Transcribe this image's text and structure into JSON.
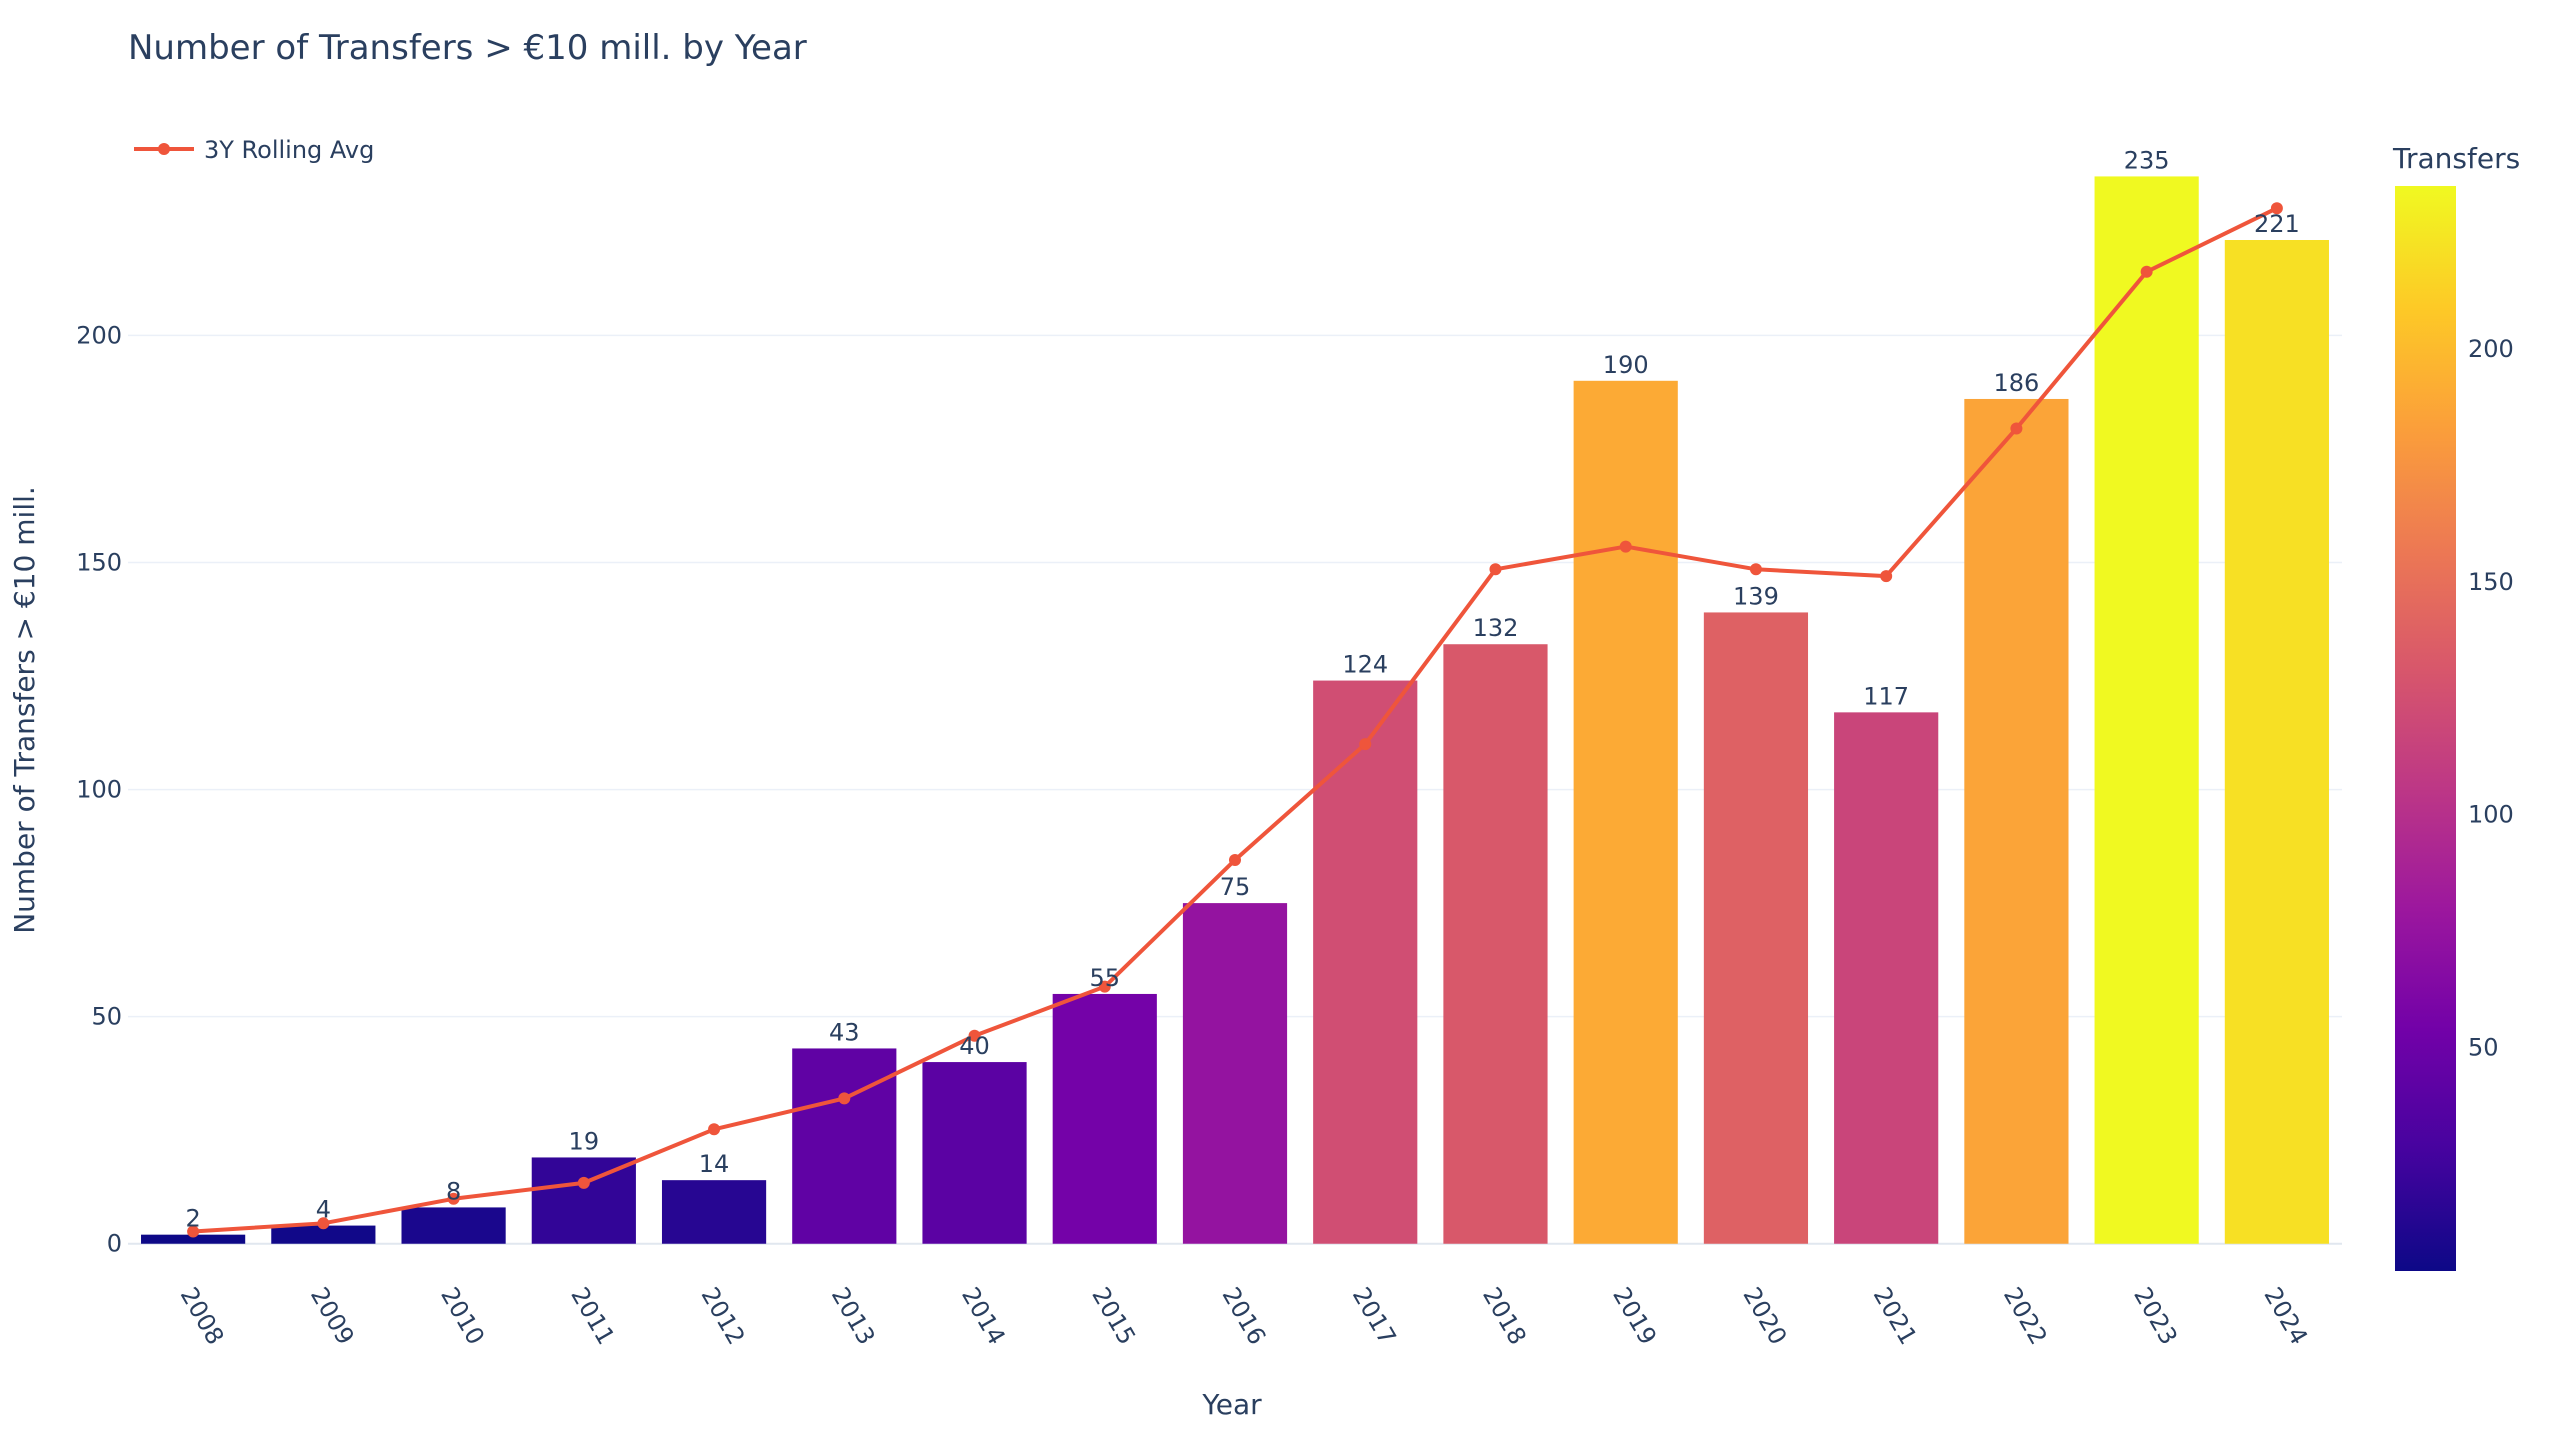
{
  "chart_data": {
    "type": "bar",
    "title": "Number of Transfers > €10 mill. by Year",
    "xlabel": "Year",
    "ylabel": "Number of Transfers > €10 mill.",
    "categories": [
      "2008",
      "2009",
      "2010",
      "2011",
      "2012",
      "2013",
      "2014",
      "2015",
      "2016",
      "2017",
      "2018",
      "2019",
      "2020",
      "2021",
      "2022",
      "2023",
      "2024"
    ],
    "series": [
      {
        "name": "Transfers",
        "type": "bar",
        "values": [
          2,
          4,
          8,
          19,
          14,
          43,
          40,
          55,
          75,
          124,
          132,
          190,
          139,
          117,
          186,
          235,
          221
        ],
        "data_labels": [
          "2",
          "4",
          "8",
          "19",
          "14",
          "43",
          "40",
          "55",
          "75",
          "124",
          "132",
          "190",
          "139",
          "117",
          "186",
          "235",
          "221"
        ]
      },
      {
        "name": "3Y Rolling Avg",
        "type": "line",
        "values": [
          2.7,
          4.5,
          9.9,
          13.4,
          25.2,
          32.0,
          45.8,
          56.6,
          84.5,
          110.0,
          148.5,
          153.5,
          148.5,
          147.0,
          179.5,
          214.0,
          228.0
        ],
        "color": "#ef553b"
      }
    ],
    "ylim": [
      -6,
      245
    ],
    "yticks": [
      0,
      50,
      100,
      150,
      200
    ],
    "grid": true,
    "legend": {
      "position": "top-left",
      "entries": [
        "3Y Rolling Avg"
      ]
    },
    "colorbar": {
      "title": "Transfers",
      "range": [
        2,
        235
      ],
      "ticks": [
        50,
        100,
        150,
        200
      ],
      "colorscale": [
        "#0d0887",
        "#46039f",
        "#7201a8",
        "#9c179e",
        "#bd3786",
        "#d8576b",
        "#ed7953",
        "#fb9f3a",
        "#fdca26",
        "#f0f921"
      ]
    }
  }
}
